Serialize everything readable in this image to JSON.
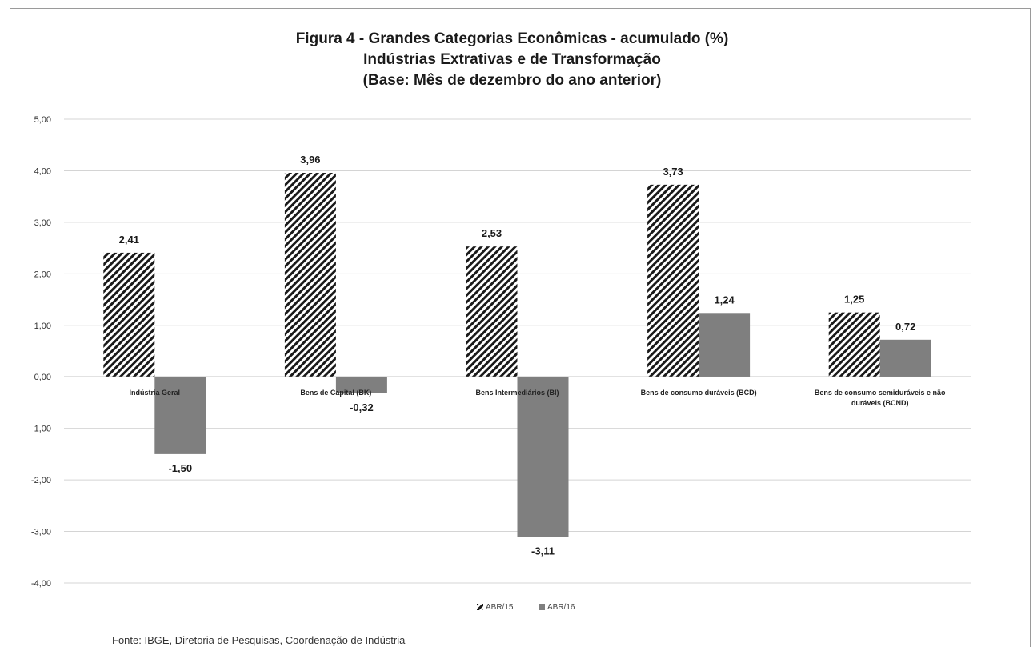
{
  "chart_data": {
    "type": "bar",
    "title_lines": [
      "Figura 4 - Grandes Categorias Econômicas - acumulado (%)",
      "Indústrias  Extrativas  e de Transformação",
      "(Base: Mês de dezembro do ano anterior)"
    ],
    "categories": [
      [
        "Indústria Geral"
      ],
      [
        "Bens de Capital (BK)"
      ],
      [
        "Bens Intermediários (BI)"
      ],
      [
        "Bens de consumo duráveis (BCD)"
      ],
      [
        "Bens de consumo semiduráveis e não",
        "duráveis (BCND)"
      ]
    ],
    "series": [
      {
        "name": "ABR/15",
        "values": [
          2.41,
          3.96,
          2.53,
          3.73,
          1.25
        ],
        "labels": [
          "2,41",
          "3,96",
          "2,53",
          "3,73",
          "1,25"
        ],
        "pattern": "diagonal-hatch",
        "color": "#1a1a1a"
      },
      {
        "name": "ABR/16",
        "values": [
          -1.5,
          -0.32,
          -3.11,
          1.24,
          0.72
        ],
        "labels": [
          "-1,50",
          "-0,32",
          "-3,11",
          "1,24",
          "0,72"
        ],
        "pattern": "solid",
        "color": "#7f7f7f"
      }
    ],
    "yticks": [
      "5,00",
      "4,00",
      "3,00",
      "2,00",
      "1,00",
      "0,00",
      "-1,00",
      "-2,00",
      "-3,00",
      "-4,00"
    ],
    "ylim": [
      -4,
      5
    ],
    "grid": true,
    "legend": "bottom",
    "xlabel": "",
    "ylabel": ""
  },
  "source": "Fonte: IBGE, Diretoria de Pesquisas, Coordenação de Indústria"
}
